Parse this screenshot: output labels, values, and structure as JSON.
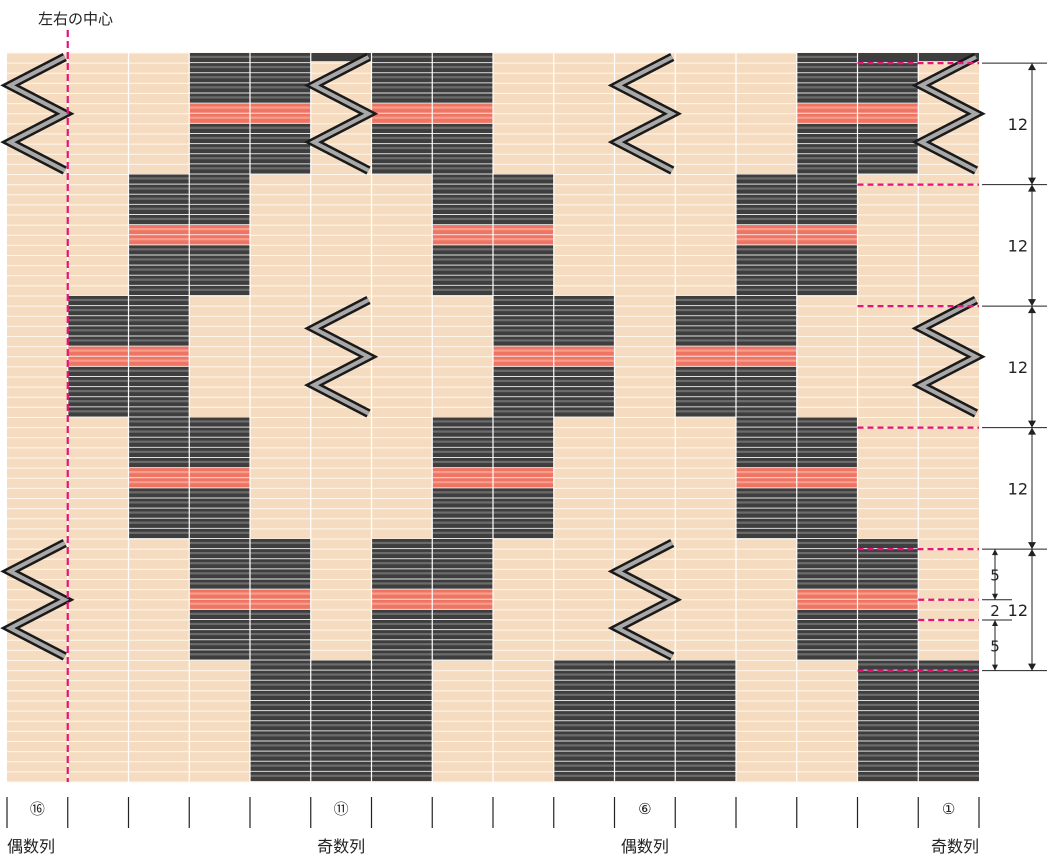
{
  "title": "左右の中心",
  "grid": {
    "columns": 16,
    "rows_total": 72,
    "band_rows": 12,
    "colors": {
      "base": "#f5dcc0",
      "base_line": "#fff6ec",
      "black": "#3e3e3e",
      "black_hi": "#8a8a8a",
      "red": "#ee7463",
      "red_hi": "#ffb8a6",
      "dash": "#e5147a",
      "divider": "#ffffff"
    },
    "band_patterns": [
      [
        "b",
        "-",
        "-",
        "c",
        "c",
        "b",
        "c",
        "c",
        "-",
        "-",
        "b",
        "-",
        "-",
        "c",
        "c",
        "b"
      ],
      [
        "-",
        "-",
        "c",
        "c",
        "-",
        "-",
        "-",
        "c",
        "c",
        "-",
        "-",
        "-",
        "c",
        "c",
        "-",
        "-"
      ],
      [
        "-",
        "c",
        "c",
        "-",
        "-",
        "b",
        "-",
        "-",
        "c",
        "c",
        "-",
        "c",
        "c",
        "-",
        "-",
        "b"
      ],
      [
        "-",
        "-",
        "c",
        "c",
        "-",
        "-",
        "-",
        "c",
        "c",
        "-",
        "-",
        "-",
        "c",
        "c",
        "-",
        "-"
      ],
      [
        "b",
        "-",
        "-",
        "c",
        "c",
        "-",
        "c",
        "c",
        "-",
        "-",
        "b",
        "-",
        "-",
        "c",
        "c",
        "-"
      ],
      [
        "-",
        "-",
        "-",
        "-",
        "s",
        "s",
        "s",
        "-",
        "-",
        "s",
        "s",
        "s",
        "-",
        "-",
        "s",
        "s"
      ]
    ],
    "top_strip_cols": [
      5,
      14,
      15
    ]
  },
  "dimensions": {
    "bands": [
      "12",
      "12",
      "12",
      "12",
      "12"
    ],
    "sub_top": "5",
    "sub_mid": "2",
    "sub_bottom": "5"
  },
  "column_markers": [
    {
      "col": 0,
      "label": "⑯"
    },
    {
      "col": 5,
      "label": "⑪"
    },
    {
      "col": 10,
      "label": "⑥"
    },
    {
      "col": 15,
      "label": "①"
    }
  ],
  "bottom_labels": [
    {
      "label": "偶数列",
      "anchor": "start",
      "col": 0
    },
    {
      "label": "奇数列",
      "anchor": "middle",
      "col": 5
    },
    {
      "label": "偶数列",
      "anchor": "middle",
      "col": 10
    },
    {
      "label": "奇数列",
      "anchor": "end",
      "col": 15
    }
  ]
}
